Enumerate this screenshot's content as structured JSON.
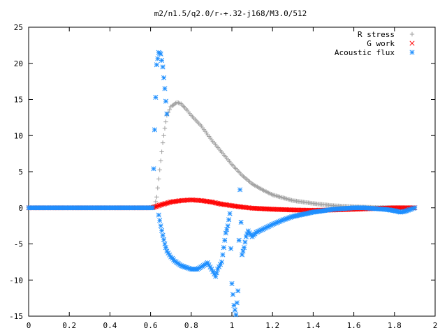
{
  "chart_data": {
    "type": "scatter",
    "title": "m2/n1.5/q2.0/r-+.32-j168/M3.0/512",
    "xlabel": "",
    "ylabel": "",
    "xlim": [
      0,
      2
    ],
    "ylim": [
      -15,
      25
    ],
    "x_ticks": [
      "0",
      "0.2",
      "0.4",
      "0.6",
      "0.8",
      "1",
      "1.2",
      "1.4",
      "1.6",
      "1.8",
      "2"
    ],
    "y_ticks": [
      "25",
      "20",
      "15",
      "10",
      "5",
      "0",
      "-5",
      "-10",
      "-15"
    ],
    "legend_position": "top-right",
    "grid": false,
    "series": [
      {
        "name": "R stress",
        "marker": "plus",
        "color": "#a0a0a0",
        "points": [
          [
            0.0,
            0
          ],
          [
            0.1,
            0
          ],
          [
            0.2,
            0
          ],
          [
            0.3,
            0
          ],
          [
            0.4,
            0
          ],
          [
            0.5,
            0
          ],
          [
            0.6,
            0
          ],
          [
            0.62,
            0.2
          ],
          [
            0.63,
            1.5
          ],
          [
            0.64,
            4
          ],
          [
            0.65,
            6.5
          ],
          [
            0.66,
            9
          ],
          [
            0.67,
            11
          ],
          [
            0.68,
            12.8
          ],
          [
            0.7,
            14.0
          ],
          [
            0.73,
            14.6
          ],
          [
            0.75,
            14.4
          ],
          [
            0.78,
            13.5
          ],
          [
            0.8,
            12.8
          ],
          [
            0.85,
            11.3
          ],
          [
            0.9,
            9.4
          ],
          [
            0.95,
            7.7
          ],
          [
            1.0,
            6.0
          ],
          [
            1.05,
            4.5
          ],
          [
            1.1,
            3.3
          ],
          [
            1.15,
            2.5
          ],
          [
            1.2,
            1.8
          ],
          [
            1.3,
            1.0
          ],
          [
            1.4,
            0.6
          ],
          [
            1.5,
            0.3
          ],
          [
            1.6,
            0.15
          ],
          [
            1.7,
            0.05
          ],
          [
            1.8,
            0.02
          ],
          [
            1.9,
            0.0
          ]
        ]
      },
      {
        "name": "G work",
        "marker": "cross",
        "color": "#ff0000",
        "points": [
          [
            0.0,
            0
          ],
          [
            0.1,
            0
          ],
          [
            0.2,
            0
          ],
          [
            0.3,
            0
          ],
          [
            0.4,
            0
          ],
          [
            0.5,
            0
          ],
          [
            0.6,
            0
          ],
          [
            0.62,
            0.1
          ],
          [
            0.65,
            0.4
          ],
          [
            0.7,
            0.8
          ],
          [
            0.75,
            1.0
          ],
          [
            0.8,
            1.1
          ],
          [
            0.85,
            1.0
          ],
          [
            0.9,
            0.8
          ],
          [
            0.95,
            0.5
          ],
          [
            1.0,
            0.3
          ],
          [
            1.05,
            0.1
          ],
          [
            1.1,
            -0.05
          ],
          [
            1.2,
            -0.2
          ],
          [
            1.3,
            -0.3
          ],
          [
            1.4,
            -0.35
          ],
          [
            1.5,
            -0.3
          ],
          [
            1.6,
            -0.2
          ],
          [
            1.7,
            -0.1
          ],
          [
            1.8,
            0.0
          ],
          [
            1.9,
            0.0
          ]
        ]
      },
      {
        "name": "Acoustic flux",
        "marker": "star",
        "color": "#1e8fff",
        "points": [
          [
            0.0,
            0
          ],
          [
            0.05,
            0
          ],
          [
            0.1,
            0
          ],
          [
            0.15,
            0
          ],
          [
            0.2,
            0
          ],
          [
            0.25,
            0
          ],
          [
            0.3,
            0
          ],
          [
            0.35,
            0
          ],
          [
            0.4,
            0
          ],
          [
            0.45,
            0
          ],
          [
            0.5,
            0
          ],
          [
            0.55,
            0
          ],
          [
            0.6,
            0
          ],
          [
            0.61,
            0
          ],
          [
            0.62,
            10.8
          ],
          [
            0.63,
            19.8
          ],
          [
            0.64,
            21.5
          ],
          [
            0.65,
            21.3
          ],
          [
            0.66,
            19.5
          ],
          [
            0.67,
            16.5
          ],
          [
            0.68,
            13
          ],
          [
            0.64,
            -1.0
          ],
          [
            0.65,
            -2.5
          ],
          [
            0.66,
            -3.8
          ],
          [
            0.67,
            -5.0
          ],
          [
            0.68,
            -6.0
          ],
          [
            0.7,
            -6.8
          ],
          [
            0.72,
            -7.4
          ],
          [
            0.75,
            -8.0
          ],
          [
            0.78,
            -8.3
          ],
          [
            0.8,
            -8.5
          ],
          [
            0.83,
            -8.5
          ],
          [
            0.86,
            -8.0
          ],
          [
            0.88,
            -7.6
          ],
          [
            0.9,
            -8.5
          ],
          [
            0.92,
            -9.5
          ],
          [
            0.93,
            -8.5
          ],
          [
            0.95,
            -7.5
          ],
          [
            0.96,
            -5.5
          ],
          [
            0.97,
            -3.5
          ],
          [
            0.98,
            -2.5
          ],
          [
            0.99,
            -0.8
          ],
          [
            1.0,
            -10.5
          ],
          [
            1.01,
            -13.5
          ],
          [
            1.02,
            -14.8
          ],
          [
            1.03,
            -11.5
          ],
          [
            1.04,
            2.5
          ],
          [
            1.05,
            -6.5
          ],
          [
            1.06,
            -5.5
          ],
          [
            1.07,
            -4.0
          ],
          [
            1.08,
            -3.2
          ],
          [
            1.1,
            -4.0
          ],
          [
            1.12,
            -3.4
          ],
          [
            1.15,
            -3.0
          ],
          [
            1.2,
            -2.3
          ],
          [
            1.25,
            -1.7
          ],
          [
            1.3,
            -1.2
          ],
          [
            1.35,
            -0.9
          ],
          [
            1.4,
            -0.6
          ],
          [
            1.45,
            -0.4
          ],
          [
            1.5,
            -0.2
          ],
          [
            1.55,
            -0.1
          ],
          [
            1.6,
            0.0
          ],
          [
            1.65,
            0.0
          ],
          [
            1.7,
            -0.1
          ],
          [
            1.75,
            -0.2
          ],
          [
            1.8,
            -0.4
          ],
          [
            1.83,
            -0.6
          ],
          [
            1.85,
            -0.5
          ],
          [
            1.88,
            -0.2
          ],
          [
            1.9,
            0.0
          ]
        ]
      }
    ]
  }
}
